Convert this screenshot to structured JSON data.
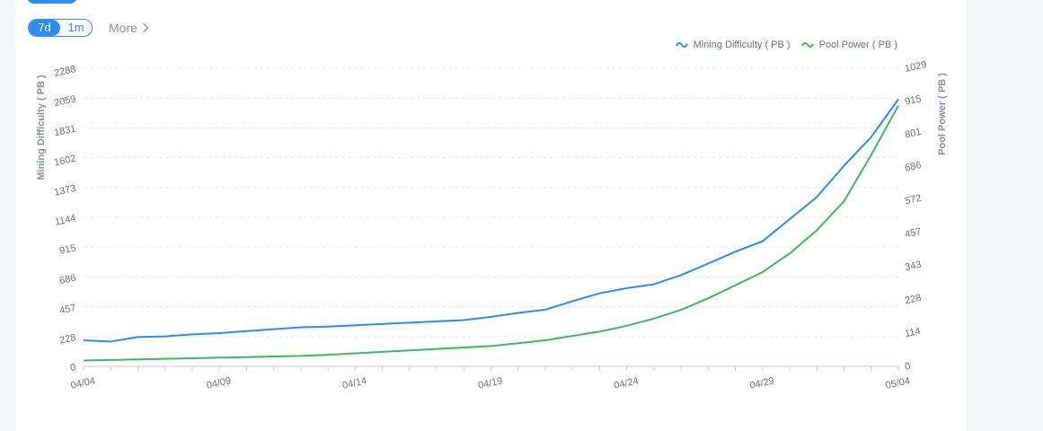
{
  "toolbar": {
    "range_options": [
      "7d",
      "1m"
    ],
    "active_range": "7d",
    "more_label": "More"
  },
  "colors": {
    "difficulty": "#2d8cf0",
    "pool": "#3cba5b",
    "grid": "#e8e8e8",
    "axis_text": "#6e7079",
    "axis_line": "#c9c9c9"
  },
  "chart_data": {
    "type": "line",
    "title": "",
    "legend": [
      "Mining Difficulty ( PB )",
      "Pool Power ( PB )"
    ],
    "legend_position": "top-right",
    "xlabel": "",
    "ylabel_left": "Mining Difficulty ( PB )",
    "ylabel_right": "Pool Power ( PB )",
    "x_ticks": [
      "04/04",
      "04/09",
      "04/14",
      "04/19",
      "04/24",
      "04/29",
      "05/04"
    ],
    "y_left_ticks": [
      "0",
      "228",
      "457",
      "686",
      "915",
      "1144",
      "1373",
      "1602",
      "1831",
      "2059",
      "2288"
    ],
    "y_right_ticks": [
      "0",
      "114",
      "228",
      "343",
      "457",
      "572",
      "686",
      "801",
      "915",
      "1029"
    ],
    "ylim_left": [
      0,
      2288
    ],
    "ylim_right": [
      0,
      1029
    ],
    "grid": true,
    "x_days": [
      0,
      1,
      2,
      3,
      4,
      5,
      6,
      7,
      8,
      9,
      10,
      11,
      12,
      13,
      14,
      15,
      16,
      17,
      18,
      19,
      20,
      21,
      22,
      23,
      24,
      25,
      26,
      27,
      28,
      29,
      30
    ],
    "series": [
      {
        "name": "Mining Difficulty ( PB )",
        "axis": "left",
        "values": [
          200,
          190,
          225,
          230,
          245,
          255,
          270,
          285,
          300,
          305,
          315,
          325,
          335,
          345,
          355,
          380,
          410,
          435,
          500,
          560,
          600,
          630,
          700,
          790,
          880,
          960,
          1130,
          1300,
          1540,
          1760,
          2050
        ]
      },
      {
        "name": "Pool Power ( PB )",
        "axis": "right",
        "values": [
          20,
          22,
          24,
          26,
          28,
          30,
          32,
          34,
          36,
          40,
          45,
          50,
          55,
          60,
          65,
          70,
          80,
          90,
          105,
          120,
          140,
          165,
          195,
          235,
          280,
          325,
          390,
          470,
          570,
          730,
          900
        ]
      }
    ]
  }
}
